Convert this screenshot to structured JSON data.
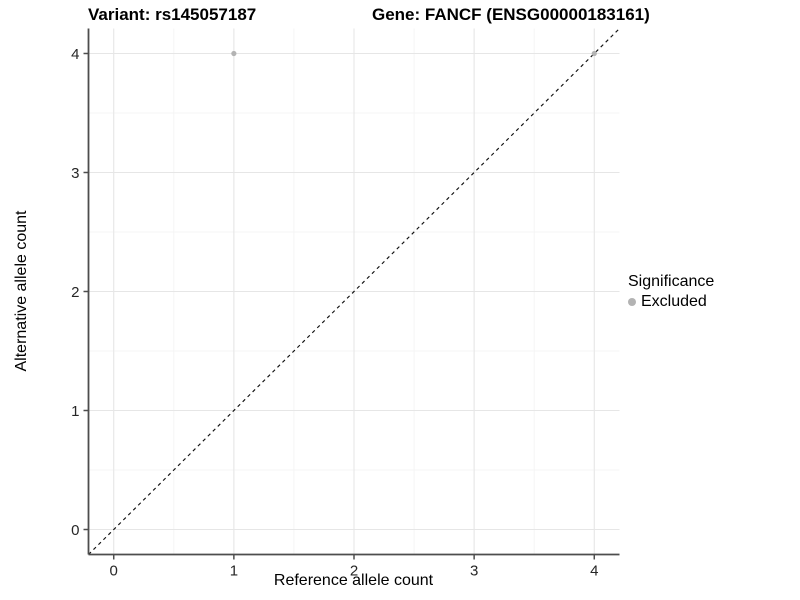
{
  "chart_data": {
    "type": "scatter",
    "titles": {
      "left": "Variant: rs145057187",
      "right": "Gene: FANCF (ENSG00000183161)"
    },
    "xlabel": "Reference allele count",
    "ylabel": "Alternative allele count",
    "xlim": [
      -0.21,
      4.21
    ],
    "ylim": [
      -0.21,
      4.21
    ],
    "x_ticks": [
      0,
      1,
      2,
      3,
      4
    ],
    "y_ticks": [
      0,
      1,
      2,
      3,
      4
    ],
    "minor_tick_step": 0.5,
    "grid": {
      "major_color": "#e6e6e6",
      "minor_color": "#f3f3f3",
      "background": "#ffffff"
    },
    "axis_color": "#4d4d4d",
    "tick_label_color": "#262626",
    "reference_line": {
      "type": "identity",
      "slope": 1,
      "intercept": 0,
      "style": "dashed",
      "color": "#111111"
    },
    "series": [
      {
        "name": "Excluded",
        "color": "#b3b3b3",
        "points": [
          [
            1,
            4
          ],
          [
            4,
            4
          ]
        ]
      }
    ],
    "legend": {
      "title": "Significance",
      "position": "right",
      "entries": [
        {
          "label": "Excluded",
          "color": "#b3b3b3"
        }
      ]
    }
  }
}
